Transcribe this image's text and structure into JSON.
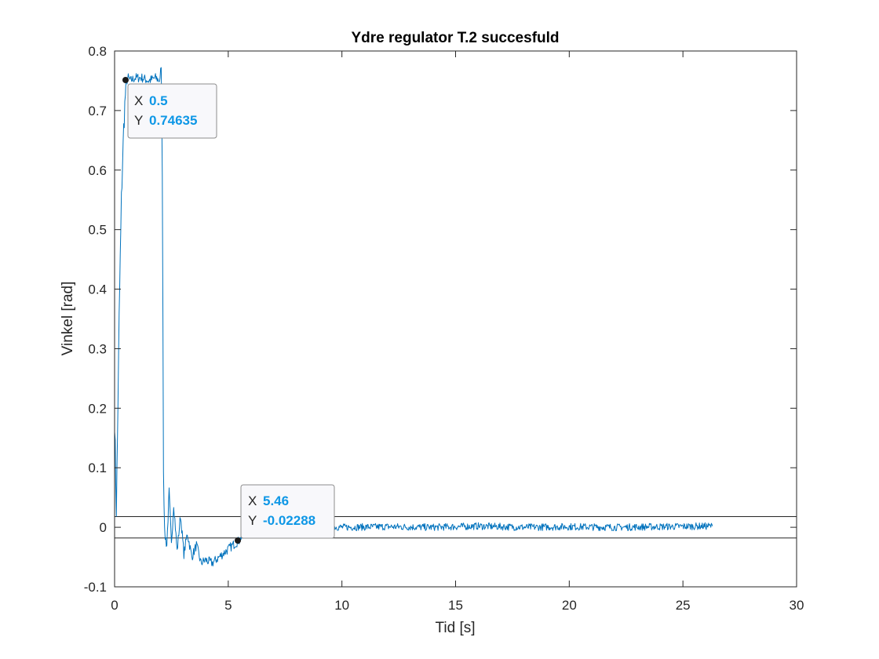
{
  "chart_data": {
    "type": "line",
    "title": "Ydre regulator T.2 succesfuld",
    "xlabel": "Tid [s]",
    "ylabel": "Vinkel [rad]",
    "xlim": [
      0,
      30
    ],
    "ylim": [
      -0.1,
      0.8
    ],
    "xticks": [
      0,
      5,
      10,
      15,
      20,
      25,
      30
    ],
    "yticks": [
      -0.1,
      0,
      0.1,
      0.2,
      0.3,
      0.4,
      0.5,
      0.6,
      0.7,
      0.8
    ],
    "xtick_labels": [
      "0",
      "5",
      "10",
      "15",
      "20",
      "25",
      "30"
    ],
    "ytick_labels": [
      "-0.1",
      "0",
      "0.1",
      "0.2",
      "0.3",
      "0.4",
      "0.5",
      "0.6",
      "0.7",
      "0.8"
    ],
    "grid": false,
    "series_color": "#0072bd",
    "series": [
      {
        "x": [
          0,
          0.08,
          0.15,
          0.2,
          0.3,
          0.4,
          0.5,
          0.6,
          0.7,
          0.9,
          1.2,
          1.5,
          1.8,
          2.0,
          2.05,
          2.1,
          2.15,
          2.2,
          2.25,
          2.3,
          2.4,
          2.5,
          2.6,
          2.75,
          2.9,
          3.05,
          3.2,
          3.4,
          3.6,
          3.8,
          4.0,
          4.3,
          4.6,
          4.9,
          5.2,
          5.46,
          5.8,
          6.2,
          6.6,
          7.0,
          8.0,
          9.0,
          10.0,
          12.0,
          14.0,
          16.0,
          18.0,
          20.0,
          22.0,
          24.0,
          26.3
        ],
        "y": [
          0.18,
          0.03,
          0.21,
          0.35,
          0.55,
          0.67,
          0.746,
          0.755,
          0.75,
          0.755,
          0.755,
          0.75,
          0.755,
          0.75,
          0.78,
          0.6,
          0.1,
          -0.01,
          -0.02,
          -0.03,
          0.06,
          -0.03,
          0.04,
          -0.04,
          0.02,
          -0.045,
          -0.01,
          -0.05,
          -0.03,
          -0.06,
          -0.055,
          -0.06,
          -0.05,
          -0.04,
          -0.03,
          -0.0229,
          -0.005,
          0.005,
          0.0,
          0.003,
          0.0,
          0.002,
          0.0,
          0.001,
          0.0,
          0.002,
          0.0,
          0.001,
          0.0,
          0.001,
          0.002
        ]
      }
    ],
    "reference_lines": [
      0.018,
      -0.018
    ],
    "reference_color": "#262626",
    "datatips": [
      {
        "x_key": "X",
        "x_value": "0.5",
        "y_key": "Y",
        "y_value": "0.74635",
        "px": 0.5,
        "py": 0.74635
      },
      {
        "x_key": "X",
        "x_value": "5.46",
        "y_key": "Y",
        "y_value": "-0.02288",
        "px": 5.46,
        "py": -0.02288
      }
    ]
  }
}
